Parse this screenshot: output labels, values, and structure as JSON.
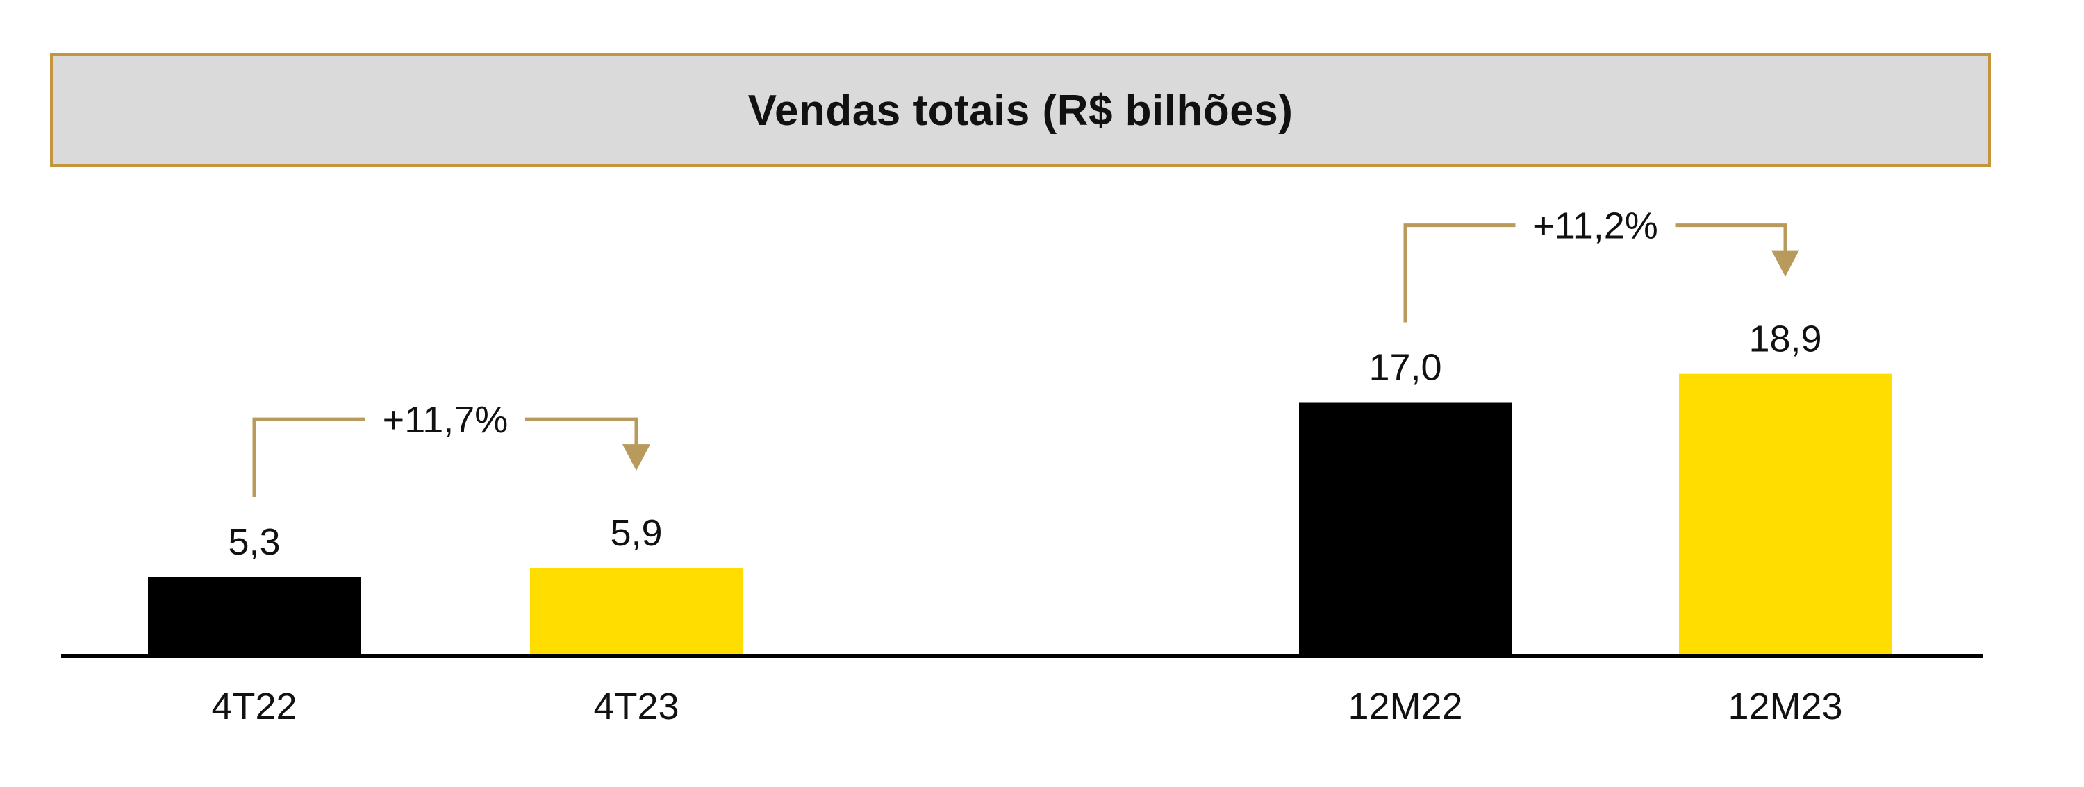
{
  "chart_data": {
    "type": "bar",
    "title": "Vendas totais (R$ bilhões)",
    "xlabel": "",
    "ylabel": "",
    "ylim": [
      0,
      20
    ],
    "grid": false,
    "categories": [
      "4T22",
      "4T23",
      "12M22",
      "12M23"
    ],
    "values": [
      5.3,
      5.9,
      17.0,
      18.9
    ],
    "value_labels": [
      "5,3",
      "5,9",
      "17,0",
      "18,9"
    ],
    "bar_colors": [
      "#000000",
      "#ffdd00",
      "#000000",
      "#ffdd00"
    ],
    "annotations": [
      {
        "text": "+11,7%",
        "from": "4T22",
        "to": "4T23"
      },
      {
        "text": "+11,2%",
        "from": "12M22",
        "to": "12M23"
      }
    ],
    "annotation_color": "#b89a5c",
    "axis_color": "#000000"
  }
}
